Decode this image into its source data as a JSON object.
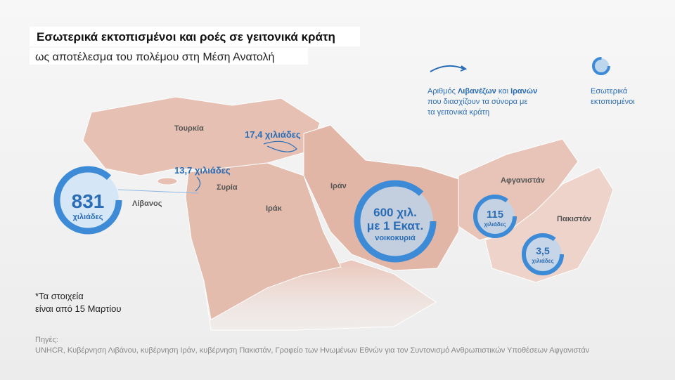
{
  "header": {
    "title": "Εσωτερικά εκτοπισμένοι και ροές σε γειτονικά κράτη",
    "subtitle": "ως αποτέλεσμα του πολέμου στη Μέση Ανατολή"
  },
  "legend": {
    "flows": {
      "line1": [
        "Αριθμός ",
        "Λιβανέζων",
        " και ",
        "Ιρανών"
      ],
      "line2": "που διασχίζουν τα σύνορα με",
      "line3": "τα γειτονικά κράτη"
    },
    "displaced": [
      "Εσωτερικά",
      "εκτοπισμένοι"
    ]
  },
  "countries": [
    "Τουρκία",
    "Συρία",
    "Λίβανος",
    "Ιράκ",
    "Ιράν",
    "Αφγανιστάν",
    "Πακιστάν"
  ],
  "flows": [
    "17,4 χιλιάδες",
    "13,7 χιλιάδες"
  ],
  "displaced": [
    {
      "lines": [
        "831"
      ],
      "unit": "χιλιάδες"
    },
    {
      "lines": [
        "600 χιλ.",
        "με 1 Εκατ."
      ],
      "unit": "νοικοκυριά"
    },
    {
      "lines": [
        "115"
      ],
      "unit": "χιλιάδες"
    },
    {
      "lines": [
        "3,5"
      ],
      "unit": "χιλιάδες"
    }
  ],
  "note": [
    "*Τα στοιχεία",
    "είναι από 15 Μαρτίου"
  ],
  "sources": {
    "label": "Πηγές:",
    "text": "UNHCR, Κυβέρνηση Λιβάνου, κυβέρνηση Ιράν, κυβέρνηση Πακιστάν, Γραφείο των Ηνωμένων Εθνών για τον Συντονισμό Ανθρωπιστικών Υποθέσεων Αφγανιστάν"
  }
}
